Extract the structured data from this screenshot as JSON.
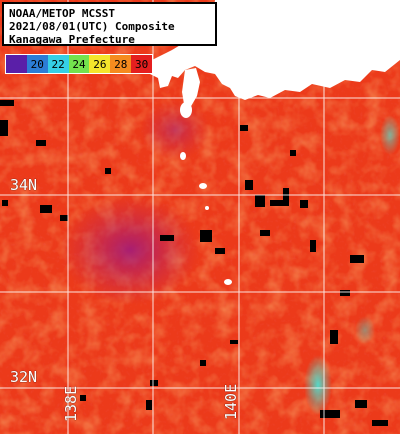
{
  "title": {
    "line1": "NOAA/METOP MCSST",
    "line2": "2021/08/01(UTC) Composite",
    "line3": "Kanagawa Prefecture"
  },
  "scale": {
    "first_color": "#5a1fa8",
    "values": [
      "20",
      "22",
      "24",
      "26",
      "28",
      "30"
    ],
    "colors": [
      "#2c7dd6",
      "#35d0e6",
      "#74e24e",
      "#f4e52c",
      "#f58b1f",
      "#e51f1f"
    ]
  },
  "grid": {
    "lat_labels": [
      "34N",
      "32N"
    ],
    "lon_labels": [
      "138E",
      "140E"
    ]
  },
  "colors": {
    "sea_base": "#ec3a1a",
    "land": "#ffffff",
    "grid": "#ffffff"
  }
}
